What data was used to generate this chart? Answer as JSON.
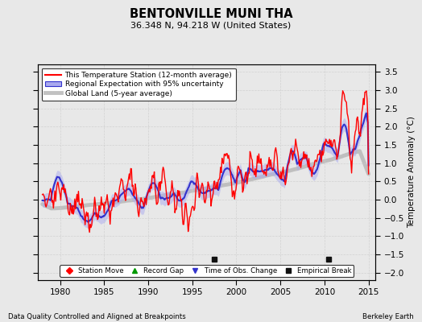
{
  "title": "BENTONVILLE MUNI THA",
  "subtitle": "36.348 N, 94.218 W (United States)",
  "xlabel_left": "Data Quality Controlled and Aligned at Breakpoints",
  "xlabel_right": "Berkeley Earth",
  "ylabel": "Temperature Anomaly (°C)",
  "xlim": [
    1977.5,
    2015.8
  ],
  "ylim": [
    -2.2,
    3.7
  ],
  "yticks": [
    -2,
    -1.5,
    -1,
    -0.5,
    0,
    0.5,
    1,
    1.5,
    2,
    2.5,
    3,
    3.5
  ],
  "xticks": [
    1980,
    1985,
    1990,
    1995,
    2000,
    2005,
    2010,
    2015
  ],
  "color_station": "#FF0000",
  "color_regional": "#3333CC",
  "color_regional_fill": "#AAAAEE",
  "color_global": "#BBBBBB",
  "bg_color": "#E8E8E8",
  "legend_entries": [
    "This Temperature Station (12-month average)",
    "Regional Expectation with 95% uncertainty",
    "Global Land (5-year average)"
  ],
  "marker_labels": [
    "Station Move",
    "Record Gap",
    "Time of Obs. Change",
    "Empirical Break"
  ],
  "marker_colors": [
    "#FF0000",
    "#009900",
    "#3333CC",
    "#111111"
  ],
  "marker_styles": [
    "D",
    "^",
    "v",
    "s"
  ],
  "empirical_break_years": [
    1997.5,
    2010.5
  ],
  "seed": 42
}
